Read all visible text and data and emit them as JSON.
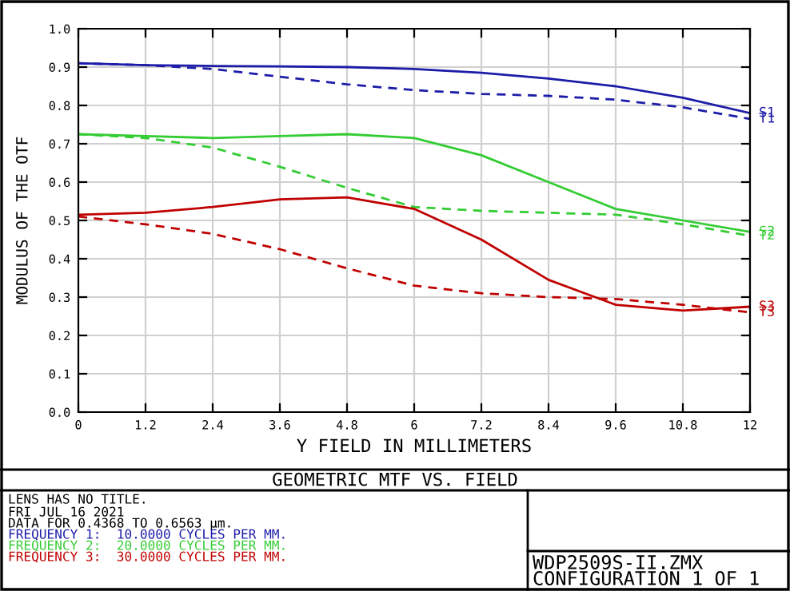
{
  "chart_data": {
    "type": "line",
    "title": "GEOMETRIC MTF VS. FIELD",
    "xlabel": "Y FIELD IN MILLIMETERS",
    "ylabel": "MODULUS OF THE OTF",
    "x": [
      0,
      1.2,
      2.4,
      3.6,
      4.8,
      6,
      7.2,
      8.4,
      9.6,
      10.8,
      12
    ],
    "xlim": [
      0,
      12
    ],
    "ylim": [
      0,
      1
    ],
    "xticks": [
      0,
      1.2,
      2.4,
      3.6,
      4.8,
      6,
      7.2,
      8.4,
      9.6,
      10.8,
      12
    ],
    "yticks": [
      {
        "value": 0,
        "label": "0.0"
      },
      0.1,
      0.2,
      0.3,
      0.4,
      0.5,
      0.6,
      0.7,
      0.8,
      0.9,
      {
        "value": 1,
        "label": "1.0"
      }
    ],
    "grid": true,
    "legend": false,
    "marker": "none",
    "series": [
      {
        "name": "S1",
        "color": "#1c1ca8",
        "line_style": "solid",
        "values": [
          0.91,
          0.905,
          0.903,
          0.902,
          0.9,
          0.895,
          0.885,
          0.87,
          0.85,
          0.82,
          0.78
        ]
      },
      {
        "name": "T1",
        "color": "#1c1ca8",
        "line_style": "dashed",
        "values": [
          0.91,
          0.905,
          0.895,
          0.875,
          0.855,
          0.84,
          0.83,
          0.825,
          0.815,
          0.795,
          0.765
        ]
      },
      {
        "name": "S2",
        "color": "#33cc33",
        "line_style": "solid",
        "values": [
          0.725,
          0.72,
          0.715,
          0.72,
          0.725,
          0.715,
          0.67,
          0.6,
          0.53,
          0.5,
          0.47
        ]
      },
      {
        "name": "T2",
        "color": "#33cc33",
        "line_style": "dashed",
        "values": [
          0.725,
          0.715,
          0.69,
          0.64,
          0.585,
          0.535,
          0.525,
          0.52,
          0.515,
          0.49,
          0.46
        ]
      },
      {
        "name": "S3",
        "color": "#c00000",
        "line_style": "solid",
        "values": [
          0.515,
          0.52,
          0.535,
          0.555,
          0.56,
          0.53,
          0.45,
          0.345,
          0.28,
          0.265,
          0.275
        ]
      },
      {
        "name": "T3",
        "color": "#c00000",
        "line_style": "dashed",
        "values": [
          0.51,
          0.49,
          0.465,
          0.425,
          0.375,
          0.33,
          0.31,
          0.3,
          0.295,
          0.28,
          0.26
        ]
      }
    ],
    "annotations": [
      "LENS HAS NO TITLE.",
      "FRI JUL 16 2021",
      "DATA FOR 0.4368 TO 0.6563 µm.",
      "FREQUENCY 1:  10.0000 CYCLES PER MM.",
      "FREQUENCY 2:  20.0000 CYCLES PER MM.",
      "FREQUENCY 3:  30.0000 CYCLES PER MM.",
      "WDP2509S-II.ZMX",
      "CONFIGURATION 1 OF 1"
    ]
  }
}
